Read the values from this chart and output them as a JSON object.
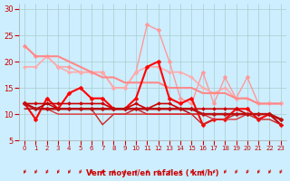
{
  "title": "",
  "xlabel": "Vent moyen/en rafales ( km/h )",
  "ylabel": "",
  "bg_color": "#cceeff",
  "grid_color": "#aacccc",
  "x": [
    0,
    1,
    2,
    3,
    4,
    5,
    6,
    7,
    8,
    9,
    10,
    11,
    12,
    13,
    14,
    15,
    16,
    17,
    18,
    19,
    20,
    21,
    22,
    23
  ],
  "lines": [
    {
      "y": [
        23,
        21,
        21,
        19,
        19,
        18,
        18,
        18,
        15,
        15,
        18,
        27,
        26,
        20,
        13,
        12,
        18,
        12,
        17,
        13,
        17,
        12,
        12,
        12
      ],
      "color": "#ff9999",
      "lw": 1.0,
      "marker": "D",
      "ms": 2.5
    },
    {
      "y": [
        19,
        19,
        21,
        19,
        18,
        18,
        18,
        18,
        15,
        15,
        18,
        19,
        19,
        18,
        18,
        17,
        15,
        14,
        15,
        13,
        13,
        12,
        12,
        12
      ],
      "color": "#ffaaaa",
      "lw": 1.2,
      "marker": "D",
      "ms": 2.0
    },
    {
      "y": [
        23,
        21,
        21,
        21,
        20,
        19,
        18,
        17,
        17,
        16,
        16,
        16,
        16,
        15,
        15,
        15,
        14,
        14,
        14,
        13,
        13,
        12,
        12,
        12
      ],
      "color": "#ff8888",
      "lw": 1.5,
      "marker": null,
      "ms": 0
    },
    {
      "y": [
        12,
        9,
        13,
        11,
        14,
        15,
        13,
        13,
        11,
        11,
        13,
        19,
        20,
        13,
        12,
        13,
        8,
        9,
        9,
        11,
        11,
        9,
        10,
        8
      ],
      "color": "#ff0000",
      "lw": 1.5,
      "marker": "D",
      "ms": 2.5
    },
    {
      "y": [
        12,
        12,
        12,
        12,
        12,
        12,
        12,
        12,
        11,
        11,
        12,
        11,
        12,
        12,
        11,
        11,
        11,
        11,
        11,
        11,
        10,
        10,
        10,
        9
      ],
      "color": "#cc0000",
      "lw": 1.2,
      "marker": "D",
      "ms": 2.0
    },
    {
      "y": [
        11,
        11,
        12,
        11,
        11,
        11,
        11,
        11,
        11,
        11,
        11,
        11,
        11,
        11,
        11,
        10,
        10,
        10,
        10,
        10,
        10,
        10,
        10,
        8
      ],
      "color": "#aa0000",
      "lw": 1.0,
      "marker": null,
      "ms": 0
    },
    {
      "y": [
        12,
        11,
        11,
        11,
        11,
        11,
        11,
        8,
        10,
        10,
        11,
        10,
        10,
        10,
        10,
        10,
        8,
        9,
        9,
        10,
        10,
        9,
        9,
        8
      ],
      "color": "#cc2222",
      "lw": 1.0,
      "marker": null,
      "ms": 0
    },
    {
      "y": [
        12,
        11,
        11,
        10,
        10,
        10,
        10,
        10,
        10,
        10,
        10,
        10,
        10,
        10,
        10,
        10,
        10,
        9,
        9,
        9,
        10,
        10,
        10,
        9
      ],
      "color": "#dd3333",
      "lw": 1.0,
      "marker": null,
      "ms": 0
    },
    {
      "y": [
        12,
        11,
        11,
        11,
        11,
        11,
        11,
        11,
        11,
        11,
        11,
        11,
        11,
        11,
        11,
        11,
        10,
        10,
        10,
        10,
        10,
        10,
        10,
        9
      ],
      "color": "#bb1111",
      "lw": 1.8,
      "marker": "D",
      "ms": 2.5
    }
  ],
  "arrows_color": "#cc0000",
  "xlim": [
    -0.5,
    23.5
  ],
  "ylim": [
    5,
    31
  ],
  "yticks": [
    5,
    10,
    15,
    20,
    25,
    30
  ],
  "xticks": [
    0,
    1,
    2,
    3,
    4,
    5,
    6,
    7,
    8,
    9,
    10,
    11,
    12,
    13,
    14,
    15,
    16,
    17,
    18,
    19,
    20,
    21,
    22,
    23
  ]
}
